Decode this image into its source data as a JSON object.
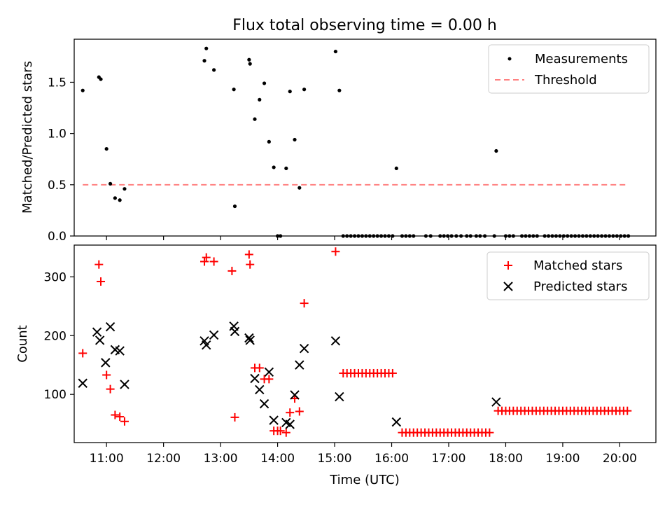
{
  "title": "Flux total observing time = 0.00 h",
  "xlabel": "Time (UTC)",
  "x_ticks": [
    "11:00",
    "12:00",
    "13:00",
    "14:00",
    "15:00",
    "16:00",
    "17:00",
    "18:00",
    "19:00",
    "20:00"
  ],
  "chart_data": [
    {
      "type": "scatter",
      "ylabel": "Matched/Predicted stars",
      "ylim": [
        0,
        1.92
      ],
      "y_ticks": [
        "0.0",
        "0.5",
        "1.0",
        "1.5"
      ],
      "legend_position": "top-right",
      "series": [
        {
          "name": "Measurements",
          "color": "#000000",
          "marker": "dot",
          "points": [
            [
              "10:35",
              1.42
            ],
            [
              "10:52",
              1.55
            ],
            [
              "10:54",
              1.53
            ],
            [
              "11:00",
              0.85
            ],
            [
              "11:04",
              0.51
            ],
            [
              "11:09",
              0.37
            ],
            [
              "11:14",
              0.35
            ],
            [
              "11:19",
              0.46
            ],
            [
              "12:43",
              1.71
            ],
            [
              "12:45",
              1.83
            ],
            [
              "12:53",
              1.62
            ],
            [
              "13:14",
              1.43
            ],
            [
              "13:15",
              0.29
            ],
            [
              "13:30",
              1.72
            ],
            [
              "13:31",
              1.68
            ],
            [
              "13:36",
              1.14
            ],
            [
              "13:41",
              1.33
            ],
            [
              "13:46",
              1.49
            ],
            [
              "13:51",
              0.92
            ],
            [
              "13:56",
              0.67
            ],
            [
              "14:00",
              0.0
            ],
            [
              "14:03",
              0.0
            ],
            [
              "14:09",
              0.66
            ],
            [
              "14:13",
              1.41
            ],
            [
              "14:18",
              0.94
            ],
            [
              "14:23",
              0.47
            ],
            [
              "14:28",
              1.43
            ],
            [
              "15:01",
              1.8
            ],
            [
              "15:05",
              1.42
            ],
            [
              "15:09",
              0.0
            ],
            [
              "15:13",
              0.0
            ],
            [
              "15:17",
              0.0
            ],
            [
              "15:21",
              0.0
            ],
            [
              "15:25",
              0.0
            ],
            [
              "15:29",
              0.0
            ],
            [
              "15:33",
              0.0
            ],
            [
              "15:37",
              0.0
            ],
            [
              "15:41",
              0.0
            ],
            [
              "15:45",
              0.0
            ],
            [
              "15:49",
              0.0
            ],
            [
              "15:53",
              0.0
            ],
            [
              "15:57",
              0.0
            ],
            [
              "16:01",
              0.0
            ],
            [
              "16:05",
              0.66
            ],
            [
              "16:11",
              0.0
            ],
            [
              "16:15",
              0.0
            ],
            [
              "16:19",
              0.0
            ],
            [
              "16:23",
              0.0
            ],
            [
              "16:36",
              0.0
            ],
            [
              "16:41",
              0.0
            ],
            [
              "16:51",
              0.0
            ],
            [
              "16:55",
              0.0
            ],
            [
              "16:59",
              0.0
            ],
            [
              "17:03",
              0.0
            ],
            [
              "17:08",
              0.0
            ],
            [
              "17:13",
              0.0
            ],
            [
              "17:19",
              0.0
            ],
            [
              "17:23",
              0.0
            ],
            [
              "17:29",
              0.0
            ],
            [
              "17:33",
              0.0
            ],
            [
              "17:38",
              0.0
            ],
            [
              "17:48",
              0.0
            ],
            [
              "17:50",
              0.83
            ],
            [
              "18:00",
              0.0
            ],
            [
              "18:04",
              0.0
            ],
            [
              "18:08",
              0.0
            ],
            [
              "18:17",
              0.0
            ],
            [
              "18:21",
              0.0
            ],
            [
              "18:25",
              0.0
            ],
            [
              "18:29",
              0.0
            ],
            [
              "18:33",
              0.0
            ],
            [
              "18:41",
              0.0
            ],
            [
              "18:45",
              0.0
            ],
            [
              "18:49",
              0.0
            ],
            [
              "18:53",
              0.0
            ],
            [
              "18:57",
              0.0
            ],
            [
              "19:01",
              0.0
            ],
            [
              "19:05",
              0.0
            ],
            [
              "19:09",
              0.0
            ],
            [
              "19:13",
              0.0
            ],
            [
              "19:17",
              0.0
            ],
            [
              "19:21",
              0.0
            ],
            [
              "19:25",
              0.0
            ],
            [
              "19:29",
              0.0
            ],
            [
              "19:33",
              0.0
            ],
            [
              "19:37",
              0.0
            ],
            [
              "19:41",
              0.0
            ],
            [
              "19:45",
              0.0
            ],
            [
              "19:49",
              0.0
            ],
            [
              "19:53",
              0.0
            ],
            [
              "19:57",
              0.0
            ],
            [
              "20:01",
              0.0
            ],
            [
              "20:05",
              0.0
            ],
            [
              "20:09",
              0.0
            ]
          ]
        },
        {
          "name": "Threshold",
          "color": "#ff8080",
          "style": "dashed",
          "points": [
            [
              "10:35",
              0.5
            ],
            [
              "20:09",
              0.5
            ]
          ]
        }
      ]
    },
    {
      "type": "scatter",
      "ylabel": "Count",
      "ylim": [
        18,
        354
      ],
      "y_ticks": [
        "100",
        "200",
        "300"
      ],
      "legend_position": "top-right",
      "series": [
        {
          "name": "Matched stars",
          "color": "#ff0000",
          "marker": "plus",
          "points": [
            [
              "10:35",
              170
            ],
            [
              "10:52",
              321
            ],
            [
              "10:54",
              292
            ],
            [
              "11:00",
              133
            ],
            [
              "11:04",
              109
            ],
            [
              "11:09",
              65
            ],
            [
              "11:14",
              62
            ],
            [
              "11:19",
              54
            ],
            [
              "12:43",
              326
            ],
            [
              "12:45",
              333
            ],
            [
              "12:53",
              326
            ],
            [
              "13:12",
              310
            ],
            [
              "13:15",
              61
            ],
            [
              "13:30",
              338
            ],
            [
              "13:31",
              321
            ],
            [
              "13:36",
              145
            ],
            [
              "13:41",
              145
            ],
            [
              "13:46",
              126
            ],
            [
              "13:51",
              126
            ],
            [
              "13:56",
              38
            ],
            [
              "14:00",
              38
            ],
            [
              "14:03",
              38
            ],
            [
              "14:09",
              35
            ],
            [
              "14:13",
              69
            ],
            [
              "14:18",
              93
            ],
            [
              "14:23",
              71
            ],
            [
              "14:28",
              255
            ],
            [
              "15:01",
              343
            ]
          ]
        },
        {
          "name": "Predicted stars",
          "color": "#000000",
          "marker": "x",
          "points": [
            [
              "10:35",
              119
            ],
            [
              "10:50",
              206
            ],
            [
              "10:53",
              192
            ],
            [
              "10:59",
              154
            ],
            [
              "11:04",
              215
            ],
            [
              "11:09",
              176
            ],
            [
              "11:14",
              174
            ],
            [
              "11:19",
              117
            ],
            [
              "12:43",
              191
            ],
            [
              "12:45",
              184
            ],
            [
              "12:53",
              201
            ],
            [
              "13:14",
              216
            ],
            [
              "13:15",
              207
            ],
            [
              "13:30",
              196
            ],
            [
              "13:31",
              192
            ],
            [
              "13:36",
              127
            ],
            [
              "13:41",
              108
            ],
            [
              "13:46",
              84
            ],
            [
              "13:51",
              138
            ],
            [
              "13:56",
              56
            ],
            [
              "14:09",
              52
            ],
            [
              "14:13",
              49
            ],
            [
              "14:18",
              99
            ],
            [
              "14:23",
              150
            ],
            [
              "14:28",
              178
            ],
            [
              "15:01",
              191
            ],
            [
              "15:05",
              96
            ],
            [
              "16:05",
              53
            ],
            [
              "17:50",
              87
            ]
          ]
        }
      ]
    }
  ],
  "constant_segments": [
    {
      "value": 136,
      "start": "15:09",
      "end": "16:01",
      "step_minutes": 4,
      "series": "Matched stars"
    },
    {
      "value": 35,
      "start": "16:11",
      "end": "17:44",
      "step_minutes": 4,
      "series": "Matched stars"
    },
    {
      "value": 72,
      "start": "17:52",
      "end": "20:10",
      "step_minutes": 4,
      "series": "Matched stars"
    }
  ]
}
